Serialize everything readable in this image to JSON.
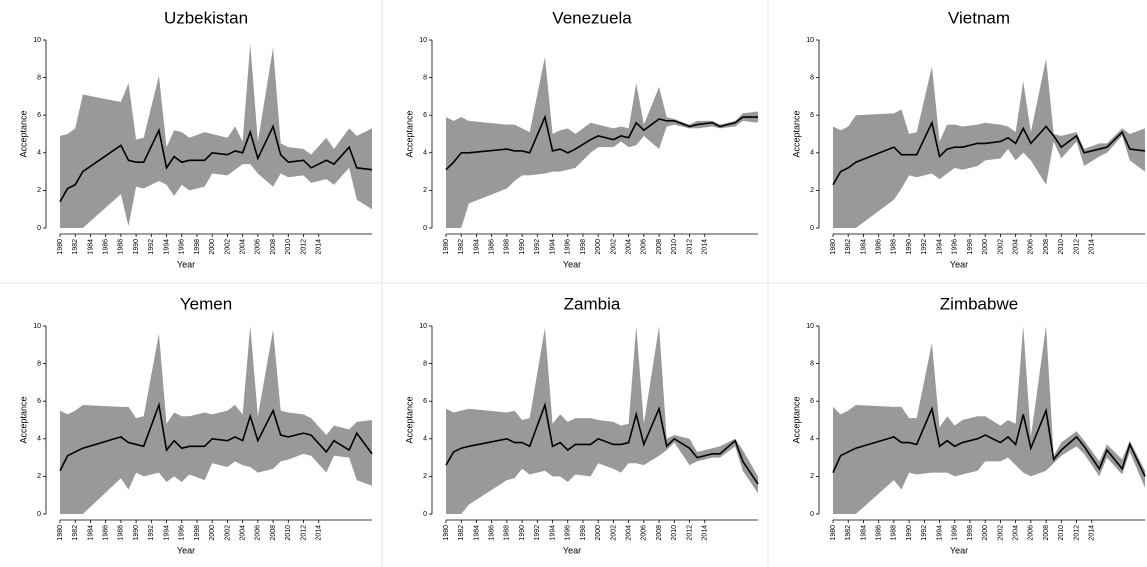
{
  "chart_data": [
    {
      "type": "line",
      "title": "Uzbekistan",
      "x_label": "Year",
      "y_label": "Acceptance",
      "color": "#000000",
      "band_color": "#999999",
      "xlim": [
        1980,
        2021
      ],
      "ylim": [
        0,
        10
      ],
      "yticks": [
        0,
        2,
        4,
        6,
        8,
        10
      ],
      "xticks": [
        1980,
        1982,
        1984,
        1986,
        1988,
        1990,
        1992,
        1994,
        1996,
        1998,
        2000,
        2002,
        2004,
        2006,
        2008,
        2010,
        2012,
        2014
      ],
      "x": [
        1980,
        1981,
        1982,
        1983,
        1988,
        1989,
        1990,
        1991,
        1993,
        1994,
        1995,
        1996,
        1997,
        1999,
        2000,
        2002,
        2003,
        2004,
        2005,
        2006,
        2008,
        2009,
        2010,
        2012,
        2013,
        2015,
        2016,
        2018,
        2019,
        2021
      ],
      "values": [
        1.4,
        2.1,
        2.3,
        3.0,
        4.4,
        3.6,
        3.5,
        3.5,
        5.2,
        3.2,
        3.8,
        3.5,
        3.6,
        3.6,
        4.0,
        3.9,
        4.1,
        4.0,
        5.1,
        3.7,
        5.4,
        3.9,
        3.5,
        3.6,
        3.2,
        3.6,
        3.4,
        4.3,
        3.2,
        3.1
      ],
      "upper": [
        4.9,
        5.0,
        5.3,
        7.1,
        6.7,
        7.7,
        4.7,
        4.8,
        8.1,
        4.3,
        5.2,
        5.1,
        4.8,
        5.1,
        5.0,
        4.8,
        5.4,
        4.6,
        9.8,
        4.6,
        9.6,
        4.5,
        4.3,
        4.2,
        3.9,
        4.8,
        4.2,
        5.3,
        4.9,
        5.3
      ],
      "lower": [
        0,
        0,
        0,
        0,
        1.8,
        0.1,
        2.2,
        2.1,
        2.5,
        2.3,
        1.7,
        2.3,
        2.0,
        2.2,
        2.9,
        2.8,
        3.1,
        3.4,
        3.4,
        2.9,
        2.2,
        2.9,
        2.7,
        2.8,
        2.4,
        2.6,
        2.3,
        3.2,
        1.5,
        1.0
      ]
    },
    {
      "type": "line",
      "title": "Venezuela",
      "x_label": "Year",
      "y_label": "Acceptance",
      "color": "#000000",
      "band_color": "#999999",
      "xlim": [
        1980,
        2021
      ],
      "ylim": [
        0,
        10
      ],
      "yticks": [
        0,
        2,
        4,
        6,
        8,
        10
      ],
      "xticks": [
        1980,
        1982,
        1984,
        1986,
        1988,
        1990,
        1992,
        1994,
        1996,
        1998,
        2000,
        2002,
        2004,
        2006,
        2008,
        2010,
        2012,
        2014
      ],
      "x": [
        1980,
        1981,
        1982,
        1983,
        1988,
        1989,
        1990,
        1991,
        1993,
        1994,
        1995,
        1996,
        1997,
        1999,
        2000,
        2002,
        2003,
        2004,
        2005,
        2006,
        2008,
        2009,
        2010,
        2012,
        2013,
        2015,
        2016,
        2018,
        2019,
        2021
      ],
      "values": [
        3.1,
        3.5,
        4.0,
        4.0,
        4.2,
        4.1,
        4.1,
        4.0,
        5.9,
        4.1,
        4.2,
        4.0,
        4.2,
        4.7,
        4.9,
        4.7,
        4.9,
        4.8,
        5.6,
        5.2,
        5.8,
        5.7,
        5.7,
        5.4,
        5.5,
        5.6,
        5.4,
        5.6,
        5.9,
        5.9
      ],
      "upper": [
        5.9,
        5.7,
        5.9,
        5.7,
        5.5,
        5.5,
        5.3,
        5.1,
        9.1,
        5.0,
        5.2,
        5.3,
        5.0,
        5.6,
        5.5,
        5.3,
        5.4,
        5.3,
        7.7,
        5.5,
        7.5,
        5.9,
        5.8,
        5.5,
        5.7,
        5.7,
        5.5,
        5.7,
        6.1,
        6.2
      ],
      "lower": [
        0,
        0,
        0,
        1.3,
        2.1,
        2.5,
        2.8,
        2.8,
        2.9,
        3.0,
        3.0,
        3.1,
        3.2,
        4.0,
        4.3,
        4.3,
        4.6,
        4.3,
        4.4,
        4.9,
        4.2,
        5.4,
        5.5,
        5.3,
        5.3,
        5.4,
        5.3,
        5.4,
        5.7,
        5.6
      ]
    },
    {
      "type": "line",
      "title": "Vietnam",
      "x_label": "Year",
      "y_label": "Acceptance",
      "color": "#000000",
      "band_color": "#999999",
      "xlim": [
        1980,
        2021
      ],
      "ylim": [
        0,
        10
      ],
      "yticks": [
        0,
        2,
        4,
        6,
        8,
        10
      ],
      "xticks": [
        1980,
        1982,
        1984,
        1986,
        1988,
        1990,
        1992,
        1994,
        1996,
        1998,
        2000,
        2002,
        2004,
        2006,
        2008,
        2010,
        2012,
        2014
      ],
      "x": [
        1980,
        1981,
        1982,
        1983,
        1988,
        1989,
        1990,
        1991,
        1993,
        1994,
        1995,
        1996,
        1997,
        1999,
        2000,
        2002,
        2003,
        2004,
        2005,
        2006,
        2008,
        2009,
        2010,
        2012,
        2013,
        2015,
        2016,
        2018,
        2019,
        2021
      ],
      "values": [
        2.3,
        3.0,
        3.2,
        3.5,
        4.3,
        3.9,
        3.9,
        3.9,
        5.6,
        3.8,
        4.2,
        4.3,
        4.3,
        4.5,
        4.5,
        4.6,
        4.8,
        4.5,
        5.3,
        4.5,
        5.4,
        4.9,
        4.3,
        4.9,
        4.0,
        4.2,
        4.3,
        5.1,
        4.2,
        4.1
      ],
      "upper": [
        5.4,
        5.2,
        5.4,
        6.0,
        6.1,
        6.3,
        5.0,
        5.1,
        8.6,
        4.6,
        5.5,
        5.5,
        5.4,
        5.5,
        5.6,
        5.5,
        5.4,
        5.1,
        7.8,
        5.1,
        9.0,
        5.0,
        4.9,
        5.1,
        4.2,
        4.5,
        4.5,
        5.3,
        5.0,
        5.3
      ],
      "lower": [
        0,
        0,
        0,
        0,
        1.5,
        2.1,
        2.8,
        2.7,
        2.9,
        2.6,
        2.9,
        3.2,
        3.1,
        3.3,
        3.6,
        3.7,
        4.2,
        3.6,
        4.0,
        3.6,
        2.3,
        4.6,
        3.7,
        4.6,
        3.3,
        3.8,
        4.0,
        4.9,
        3.6,
        3.0
      ]
    },
    {
      "type": "line",
      "title": "Yemen",
      "x_label": "Year",
      "y_label": "Acceptance",
      "color": "#000000",
      "band_color": "#999999",
      "xlim": [
        1980,
        2021
      ],
      "ylim": [
        0,
        10
      ],
      "yticks": [
        0,
        2,
        4,
        6,
        8,
        10
      ],
      "xticks": [
        1980,
        1982,
        1984,
        1986,
        1988,
        1990,
        1992,
        1994,
        1996,
        1998,
        2000,
        2002,
        2004,
        2006,
        2008,
        2010,
        2012,
        2014
      ],
      "x": [
        1980,
        1981,
        1982,
        1983,
        1988,
        1989,
        1990,
        1991,
        1993,
        1994,
        1995,
        1996,
        1997,
        1999,
        2000,
        2002,
        2003,
        2004,
        2005,
        2006,
        2008,
        2009,
        2010,
        2012,
        2013,
        2015,
        2016,
        2018,
        2019,
        2021
      ],
      "values": [
        2.3,
        3.1,
        3.3,
        3.5,
        4.1,
        3.8,
        3.7,
        3.6,
        5.8,
        3.4,
        3.9,
        3.5,
        3.6,
        3.6,
        4.0,
        3.9,
        4.1,
        3.9,
        5.2,
        3.9,
        5.5,
        4.2,
        4.1,
        4.3,
        4.2,
        3.3,
        3.9,
        3.4,
        4.3,
        3.2
      ],
      "upper": [
        5.5,
        5.3,
        5.5,
        5.8,
        5.7,
        5.7,
        5.1,
        5.2,
        9.6,
        4.8,
        5.4,
        5.2,
        5.2,
        5.4,
        5.3,
        5.5,
        5.8,
        5.3,
        10,
        5.2,
        9.8,
        5.5,
        5.4,
        5.3,
        5.1,
        4.2,
        4.7,
        4.5,
        4.9,
        5.0
      ],
      "lower": [
        0,
        0,
        0,
        0,
        1.9,
        1.3,
        2.2,
        2.0,
        2.2,
        1.7,
        2.0,
        1.7,
        2.1,
        1.8,
        2.7,
        2.5,
        2.8,
        2.6,
        2.5,
        2.2,
        2.4,
        2.8,
        2.9,
        3.2,
        3.1,
        2.2,
        3.1,
        3.0,
        1.8,
        1.5
      ]
    },
    {
      "type": "line",
      "title": "Zambia",
      "x_label": "Year",
      "y_label": "Acceptance",
      "color": "#000000",
      "band_color": "#999999",
      "xlim": [
        1980,
        2021
      ],
      "ylim": [
        0,
        10
      ],
      "yticks": [
        0,
        2,
        4,
        6,
        8,
        10
      ],
      "xticks": [
        1980,
        1982,
        1984,
        1986,
        1988,
        1990,
        1992,
        1994,
        1996,
        1998,
        2000,
        2002,
        2004,
        2006,
        2008,
        2010,
        2012,
        2014
      ],
      "x": [
        1980,
        1981,
        1982,
        1983,
        1988,
        1989,
        1990,
        1991,
        1993,
        1994,
        1995,
        1996,
        1997,
        1999,
        2000,
        2002,
        2003,
        2004,
        2005,
        2006,
        2008,
        2009,
        2010,
        2012,
        2013,
        2015,
        2016,
        2018,
        2019,
        2021
      ],
      "values": [
        2.6,
        3.3,
        3.5,
        3.6,
        4.0,
        3.8,
        3.8,
        3.6,
        5.8,
        3.6,
        3.8,
        3.4,
        3.7,
        3.7,
        4.0,
        3.7,
        3.7,
        3.8,
        5.3,
        3.7,
        5.6,
        3.6,
        4.0,
        3.5,
        3.0,
        3.2,
        3.2,
        3.9,
        2.8,
        1.6
      ],
      "upper": [
        5.6,
        5.4,
        5.5,
        5.6,
        5.4,
        5.5,
        5.0,
        5.1,
        9.9,
        4.8,
        5.3,
        4.9,
        5.1,
        5.1,
        5.0,
        4.9,
        4.7,
        4.8,
        10,
        4.8,
        10,
        4.0,
        4.2,
        4.0,
        3.3,
        3.5,
        3.6,
        4.0,
        3.4,
        2.0
      ],
      "lower": [
        0,
        0,
        0,
        0.5,
        1.8,
        1.9,
        2.4,
        2.1,
        2.3,
        2.0,
        2.0,
        1.7,
        2.1,
        2.0,
        2.7,
        2.4,
        2.2,
        2.7,
        2.7,
        2.6,
        3.1,
        3.4,
        3.8,
        2.6,
        2.8,
        3.0,
        3.0,
        3.6,
        2.3,
        1.1
      ]
    },
    {
      "type": "line",
      "title": "Zimbabwe",
      "x_label": "Year",
      "y_label": "Acceptance",
      "color": "#000000",
      "band_color": "#999999",
      "xlim": [
        1980,
        2021
      ],
      "ylim": [
        0,
        10
      ],
      "yticks": [
        0,
        2,
        4,
        6,
        8,
        10
      ],
      "xticks": [
        1980,
        1982,
        1984,
        1986,
        1988,
        1990,
        1992,
        1994,
        1996,
        1998,
        2000,
        2002,
        2004,
        2006,
        2008,
        2010,
        2012,
        2014
      ],
      "x": [
        1980,
        1981,
        1982,
        1983,
        1988,
        1989,
        1990,
        1991,
        1993,
        1994,
        1995,
        1996,
        1997,
        1999,
        2000,
        2002,
        2003,
        2004,
        2005,
        2006,
        2008,
        2009,
        2010,
        2012,
        2013,
        2015,
        2016,
        2018,
        2019,
        2021
      ],
      "values": [
        2.2,
        3.1,
        3.3,
        3.5,
        4.1,
        3.8,
        3.8,
        3.7,
        5.6,
        3.6,
        3.9,
        3.6,
        3.8,
        4.0,
        4.2,
        3.8,
        4.1,
        3.7,
        5.3,
        3.5,
        5.5,
        2.9,
        3.4,
        4.1,
        3.6,
        2.4,
        3.4,
        2.4,
        3.7,
        2.0
      ],
      "upper": [
        5.7,
        5.3,
        5.5,
        5.8,
        5.7,
        5.7,
        5.1,
        5.1,
        9.1,
        4.6,
        5.2,
        4.7,
        5.0,
        5.2,
        5.2,
        4.7,
        5.0,
        4.8,
        10,
        4.1,
        10,
        3.1,
        3.8,
        4.4,
        3.9,
        2.8,
        3.7,
        2.9,
        3.9,
        2.3
      ],
      "lower": [
        0,
        0,
        0,
        0,
        1.8,
        1.3,
        2.2,
        2.1,
        2.2,
        2.2,
        2.2,
        2.0,
        2.1,
        2.3,
        2.8,
        2.8,
        3.0,
        2.6,
        2.2,
        2.0,
        2.3,
        2.7,
        3.1,
        3.6,
        3.2,
        2.0,
        3.0,
        2.1,
        3.3,
        1.4
      ]
    }
  ]
}
